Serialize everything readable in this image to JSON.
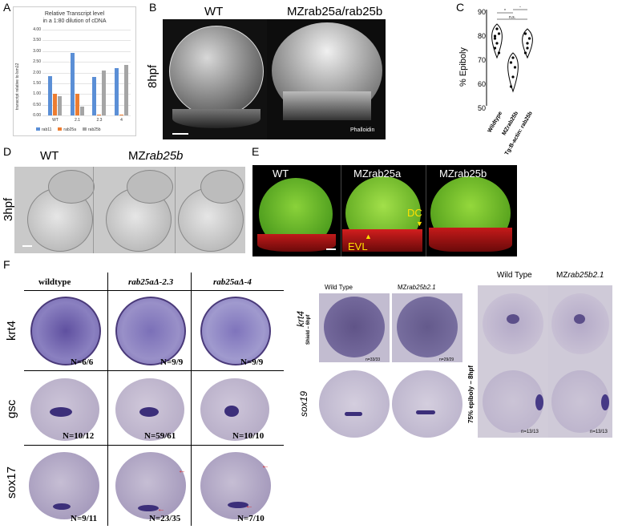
{
  "panels": {
    "A": "A",
    "B": "B",
    "C": "C",
    "D": "D",
    "E": "E",
    "F": "F"
  },
  "colors": {
    "rab11": "#5b8fd6",
    "rab25a": "#ed7d31",
    "rab25b": "#a5a5a5",
    "purple": "#4a3a7a",
    "green": "#86c232",
    "red": "#e52020"
  },
  "chart_data": [
    {
      "type": "bar",
      "title": "Relative Transcript level",
      "subtitle": "in a 1:80 dilution of cDNA",
      "ylabel": "transcript relative to lsm12",
      "xlabel": "",
      "categories": [
        "WT",
        "2.1",
        "2.3",
        "4"
      ],
      "ylim": [
        0,
        4
      ],
      "yticks": [
        "0.00",
        "0.50",
        "1.00",
        "1.50",
        "2.00",
        "2.50",
        "3.00",
        "3.50",
        "4.00"
      ],
      "series": [
        {
          "name": "rab11",
          "values": [
            1.85,
            2.9,
            1.8,
            2.2
          ]
        },
        {
          "name": "rab25a",
          "values": [
            1.0,
            1.0,
            0.05,
            0.05
          ]
        },
        {
          "name": "rab25b",
          "values": [
            0.9,
            0.4,
            2.1,
            2.35
          ]
        }
      ],
      "legend": "bottom"
    },
    {
      "type": "violin",
      "ylabel": "% Epiboly",
      "categories": [
        "Wildtype",
        "MZrab25b",
        "Tg:B-actin: rab25b"
      ],
      "ylim": [
        50,
        90
      ],
      "yticks": [
        "50",
        "60",
        "70",
        "80",
        "90"
      ],
      "points": [
        [
          78,
          76,
          80,
          74,
          82,
          72,
          79
        ],
        [
          58,
          62,
          66,
          68,
          70
        ],
        [
          72,
          76,
          78,
          80,
          74
        ]
      ],
      "sig": [
        "*",
        "*",
        "n.s."
      ]
    }
  ],
  "panelB": {
    "wt": "WT",
    "mut": "MZrab25a/rab25b",
    "stage": "8hpf",
    "stain": "Phalloidin"
  },
  "panelD": {
    "wt": "WT",
    "mut_prefix": "MZ",
    "mut_ital": "rab25b",
    "stage": "3hpf"
  },
  "panelE": {
    "wt": "WT",
    "a": "MZrab25a",
    "b": "MZrab25b",
    "dc": "DC",
    "evl": "EVL"
  },
  "panelF": {
    "cols": [
      "wildtype",
      "rab25aΔ-2.3",
      "rab25aΔ-4"
    ],
    "rows": [
      "krt4",
      "gsc",
      "sox17"
    ],
    "counts": [
      [
        "N=6/6",
        "N=9/9",
        "N=9/9"
      ],
      [
        "N=10/12",
        "N=59/61",
        "N=10/10"
      ],
      [
        "N=9/11",
        "N=23/35",
        "N=7/10"
      ]
    ]
  },
  "panelF2": {
    "wt": "Wild Type",
    "mut_prefix": "MZ",
    "mut_ital": "rab25b2.1",
    "krt4": "krt4",
    "shield": "Shield – 6hpf",
    "sox19": "sox19",
    "c1": "n=33/33",
    "c2": "n=29/29"
  },
  "panelF3": {
    "wt": "Wild Type",
    "mut_prefix": "MZ",
    "mut_ital": "rab25b2.1",
    "stage": "75% epiboly – 8hpf",
    "c1": "n=13/13",
    "c2": "n=13/13"
  }
}
